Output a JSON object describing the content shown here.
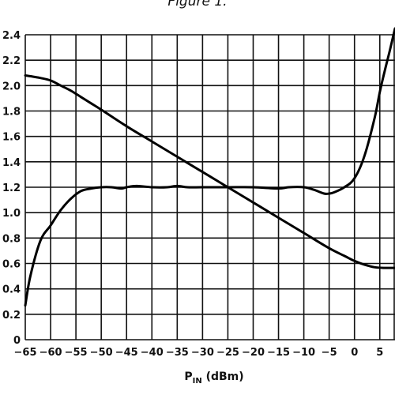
{
  "figure_caption": "Figure 1.",
  "chart_data": {
    "type": "line",
    "title": "",
    "xlabel": {
      "main": "P",
      "sub": "IN",
      "unit": " (dBm)"
    },
    "ylabel": "",
    "xlim": [
      -65,
      8
    ],
    "ylim": [
      0,
      2.4
    ],
    "xticks": [
      "−65",
      "−60",
      "−55",
      "−50",
      "−45",
      "−40",
      "−35",
      "−30",
      "−25",
      "−20",
      "−15",
      "−10",
      "−5",
      "0",
      "5"
    ],
    "xtick_values": [
      -65,
      -60,
      -55,
      -50,
      -45,
      -40,
      -35,
      -30,
      -25,
      -20,
      -15,
      -10,
      -5,
      0,
      5
    ],
    "yticks": [
      "0",
      "0.2",
      "0.4",
      "0.6",
      "0.8",
      "1.0",
      "1.2",
      "1.4",
      "1.6",
      "1.8",
      "2.0",
      "2.2",
      "2.4"
    ],
    "ytick_values": [
      0,
      0.2,
      0.4,
      0.6,
      0.8,
      1.0,
      1.2,
      1.4,
      1.6,
      1.8,
      2.0,
      2.2,
      2.4
    ],
    "grid": true,
    "series": [
      {
        "x": [
          -65,
          -64,
          -62,
          -60,
          -58,
          -56,
          -54,
          -52,
          -50,
          -48,
          -46,
          -45,
          -43,
          -40,
          -37,
          -35,
          -33,
          -30,
          -25,
          -20,
          -15,
          -13,
          -10,
          -8,
          -6,
          -5,
          -4,
          -2,
          0,
          2,
          4,
          5,
          6,
          7,
          8
        ],
        "values": [
          0.27,
          0.5,
          0.78,
          0.9,
          1.02,
          1.11,
          1.17,
          1.19,
          1.2,
          1.2,
          1.19,
          1.2,
          1.21,
          1.2,
          1.2,
          1.21,
          1.2,
          1.2,
          1.2,
          1.2,
          1.19,
          1.2,
          1.2,
          1.18,
          1.15,
          1.15,
          1.16,
          1.2,
          1.27,
          1.45,
          1.75,
          1.95,
          2.12,
          2.28,
          2.45
        ]
      },
      {
        "x": [
          -65,
          -62,
          -60,
          -58,
          -56,
          -54,
          -52,
          -50,
          -45,
          -40,
          -35,
          -30,
          -25,
          -20,
          -15,
          -10,
          -5,
          -2,
          0,
          2,
          4,
          6,
          8
        ],
        "values": [
          2.08,
          2.06,
          2.04,
          2.0,
          1.96,
          1.91,
          1.86,
          1.81,
          1.68,
          1.56,
          1.44,
          1.32,
          1.2,
          1.08,
          0.96,
          0.84,
          0.72,
          0.66,
          0.62,
          0.59,
          0.57,
          0.565,
          0.565
        ]
      }
    ]
  }
}
